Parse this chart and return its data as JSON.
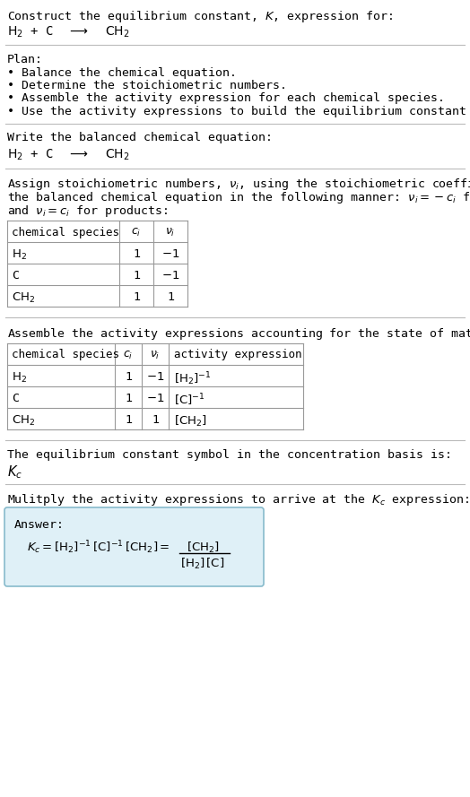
{
  "bg_color": "#ffffff",
  "answer_box_color": "#dff0f7",
  "answer_box_border": "#88bbcc",
  "text_color": "#000000",
  "separator_color": "#bbbbbb",
  "table_border_color": "#999999",
  "font_size": 9.5,
  "mono_font": "DejaVu Sans Mono",
  "serif_font": "DejaVu Serif",
  "sections": {
    "s1_line1": "Construct the equilibrium constant, K, expression for:",
    "s1_reaction": "H_2 + C  ⟶  CH_2",
    "s2_header": "Plan:",
    "s2_items": [
      "• Balance the chemical equation.",
      "• Determine the stoichiometric numbers.",
      "• Assemble the activity expression for each chemical species.",
      "• Use the activity expressions to build the equilibrium constant expression."
    ],
    "s3_header": "Write the balanced chemical equation:",
    "s4_header_parts": [
      "Assign stoichiometric numbers, ν_i, using the stoichiometric coefficients, c_i, from",
      "the balanced chemical equation in the following manner: ν_i = −c_i for reactants",
      "and ν_i = c_i for products:"
    ],
    "s5_header": "Assemble the activity expressions accounting for the state of matter and ν_i:",
    "s6_header": "The equilibrium constant symbol in the concentration basis is:",
    "s7_header": "Mulitply the activity expressions to arrive at the K_c expression:"
  }
}
